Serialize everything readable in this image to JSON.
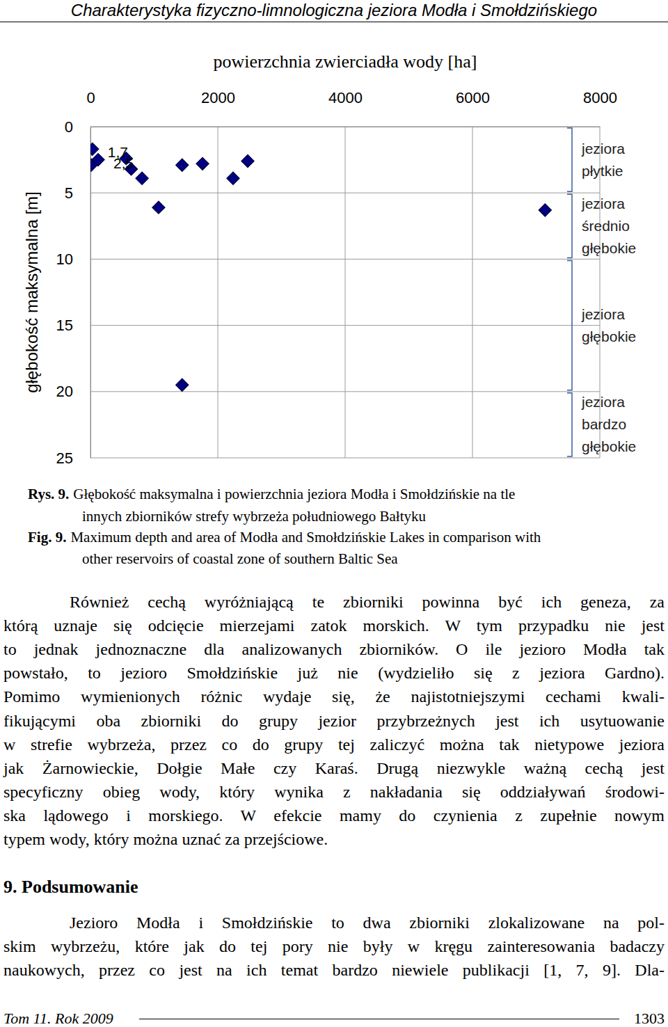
{
  "header": {
    "title": "Charakterystyka fizyczno-limnologiczna jeziora Modła i Smołdzińskiego"
  },
  "chart_data": {
    "type": "scatter",
    "x_label": "powierzchnia zwierciadła wody [ha]",
    "y_label": "głębokość maksymalna [m]",
    "x": [
      30,
      10,
      120,
      560,
      640,
      810,
      1070,
      1440,
      1760,
      2240,
      2470,
      7140,
      1440
    ],
    "values": [
      1.7,
      2.9,
      2.5,
      2.4,
      3.2,
      3.9,
      6.1,
      2.9,
      2.8,
      3.9,
      2.6,
      6.3,
      19.5
    ],
    "value_labels": [
      "1,7",
      null,
      "2,5",
      null,
      null,
      null,
      null,
      null,
      null,
      null,
      null,
      null,
      null
    ],
    "data_labels": true,
    "color": "#000080",
    "marker": "diamond",
    "xlim": [
      0,
      8000
    ],
    "xticks": [
      0,
      2000,
      4000,
      6000,
      8000
    ],
    "ylim": [
      0,
      25
    ],
    "yticks": [
      0,
      5,
      10,
      15,
      20,
      25
    ],
    "grid": true,
    "annotations": [
      {
        "text": "jeziora płytkie",
        "from": 0,
        "to": 5
      },
      {
        "text": "jeziora średnio głębokie",
        "from": 5,
        "to": 10
      },
      {
        "text": "jeziora głębokie",
        "from": 10,
        "to": 20
      },
      {
        "text": "jeziora bardzo głębokie",
        "from": 20,
        "to": 25
      }
    ]
  },
  "caption": {
    "pl": {
      "label": "Rys. 9.",
      "lines": [
        "Głębokość maksymalna i powierzchnia jeziora Modła i Smołdzińskie na tle",
        "innych zbiorników strefy wybrzeża południowego Bałtyku"
      ]
    },
    "en": {
      "label": "Fig. 9.",
      "lines": [
        "Maximum depth and area of Modła and Smołdzińskie Lakes in comparison with",
        "other reservoirs of coastal zone of southern Baltic Sea"
      ]
    }
  },
  "paragraphs": [
    [
      "Również cechą wyróżniającą te zbiorniki powinna być ich geneza, za",
      "którą uznaje się odcięcie mierzejami zatok morskich. W tym przypadku nie jest",
      "to jednak jednoznaczne dla analizowanych zbiorników. O ile jezioro Modła tak",
      "powstało, to jezioro Smołdzińskie już nie (wydzieliło się z jeziora Gardno).",
      "Pomimo wymienionych różnic wydaje się, że najistotniejszymi cechami kwali-",
      "fikującymi oba zbiorniki do grupy jezior przybrzeżnych jest ich usytuowanie",
      "w strefie wybrzeża, przez co do grupy tej zaliczyć można tak nietypowe jeziora",
      "jak Żarnowieckie, Dołgie Małe czy Karaś. Drugą niezwykle ważną cechą jest",
      "specyficzny obieg wody, który wynika z nakładania się oddziaływań środowi-",
      "ska lądowego i morskiego. W efekcie mamy do czynienia z zupełnie nowym",
      "typem wody, który można uznać za przejściowe."
    ],
    [
      "Jezioro Modła i Smołdzińskie to dwa zbiorniki zlokalizowane na pol-",
      "skim wybrzeżu, które jak do tej pory nie były w kręgu zainteresowania badaczy",
      "naukowych, przez co jest na ich temat bardzo niewiele publikacji [1, 7, 9]. Dla-"
    ]
  ],
  "section": {
    "title": "9. Podsumowanie"
  },
  "footer": {
    "left": "Tom 11. Rok 2009",
    "right": "1303"
  }
}
